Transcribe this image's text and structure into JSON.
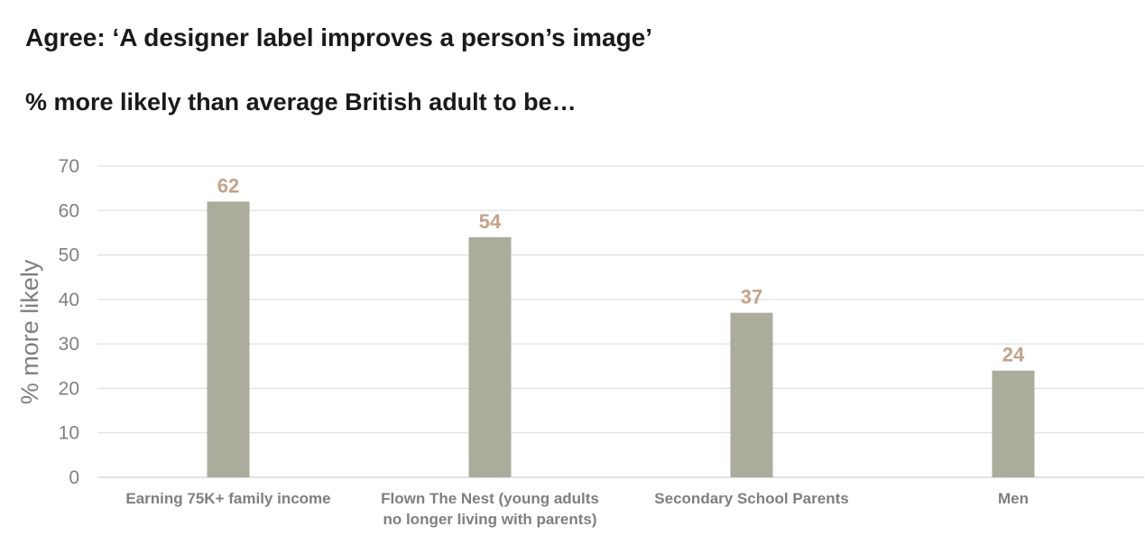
{
  "chart_data": {
    "type": "bar",
    "title": "Agree: ‘A designer label improves a person’s image’",
    "subtitle": "% more likely than average British adult to be…",
    "xlabel": "",
    "ylabel": "% more likely",
    "ylim": [
      0,
      70
    ],
    "yticks": [
      0,
      10,
      20,
      30,
      40,
      50,
      60,
      70
    ],
    "grid": true,
    "categories": [
      [
        "Earning 75K+ family income"
      ],
      [
        "Flown The Nest (young adults",
        "no longer living with parents)"
      ],
      [
        "Secondary School Parents"
      ],
      [
        "Men"
      ]
    ],
    "values": [
      62,
      54,
      37,
      24
    ],
    "colors": {
      "bar": "#abac9c",
      "data_label": "#c4a288",
      "grid": "#d9d9d9",
      "axis_text": "#7f7f7f"
    }
  }
}
